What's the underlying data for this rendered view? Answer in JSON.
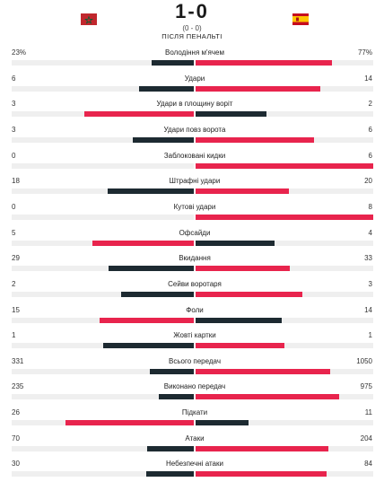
{
  "match": {
    "score": "1-0",
    "aggregate": "(0 - 0)",
    "penalties_note": "ПІСЛЯ ПЕНАЛЬТІ",
    "home_flag_icon": "morocco-flag-icon",
    "away_flag_icon": "spain-flag-icon"
  },
  "colors": {
    "lead": "#e8244d",
    "trail": "#1d2a31",
    "track": "#efefef"
  },
  "stats": [
    {
      "label": "Володіння м'ячем",
      "home": "23%",
      "away": "77%",
      "home_share": 0.23,
      "away_share": 0.77
    },
    {
      "label": "Удари",
      "home": "6",
      "away": "14",
      "home_share": 0.3,
      "away_share": 0.7
    },
    {
      "label": "Удари в площину воріт",
      "home": "3",
      "away": "2",
      "home_share": 0.6,
      "away_share": 0.4
    },
    {
      "label": "Удари повз ворота",
      "home": "3",
      "away": "6",
      "home_share": 0.333,
      "away_share": 0.667
    },
    {
      "label": "Заблоковані кидки",
      "home": "0",
      "away": "6",
      "home_share": 0,
      "away_share": 1
    },
    {
      "label": "Штрафні удари",
      "home": "18",
      "away": "20",
      "home_share": 0.474,
      "away_share": 0.526
    },
    {
      "label": "Кутові удари",
      "home": "0",
      "away": "8",
      "home_share": 0,
      "away_share": 1
    },
    {
      "label": "Офсайди",
      "home": "5",
      "away": "4",
      "home_share": 0.556,
      "away_share": 0.444
    },
    {
      "label": "Вкидання",
      "home": "29",
      "away": "33",
      "home_share": 0.468,
      "away_share": 0.532
    },
    {
      "label": "Сейви воротаря",
      "home": "2",
      "away": "3",
      "home_share": 0.4,
      "away_share": 0.6
    },
    {
      "label": "Фоли",
      "home": "15",
      "away": "14",
      "home_share": 0.517,
      "away_share": 0.483
    },
    {
      "label": "Жовті картки",
      "home": "1",
      "away": "1",
      "home_share": 0.5,
      "away_share": 0.5
    },
    {
      "label": "Всього передач",
      "home": "331",
      "away": "1050",
      "home_share": 0.24,
      "away_share": 0.76
    },
    {
      "label": "Виконано передач",
      "home": "235",
      "away": "975",
      "home_share": 0.194,
      "away_share": 0.806
    },
    {
      "label": "Підкати",
      "home": "26",
      "away": "11",
      "home_share": 0.703,
      "away_share": 0.297
    },
    {
      "label": "Атаки",
      "home": "70",
      "away": "204",
      "home_share": 0.255,
      "away_share": 0.745
    },
    {
      "label": "Небезпечні атаки",
      "home": "30",
      "away": "84",
      "home_share": 0.263,
      "away_share": 0.737
    }
  ]
}
